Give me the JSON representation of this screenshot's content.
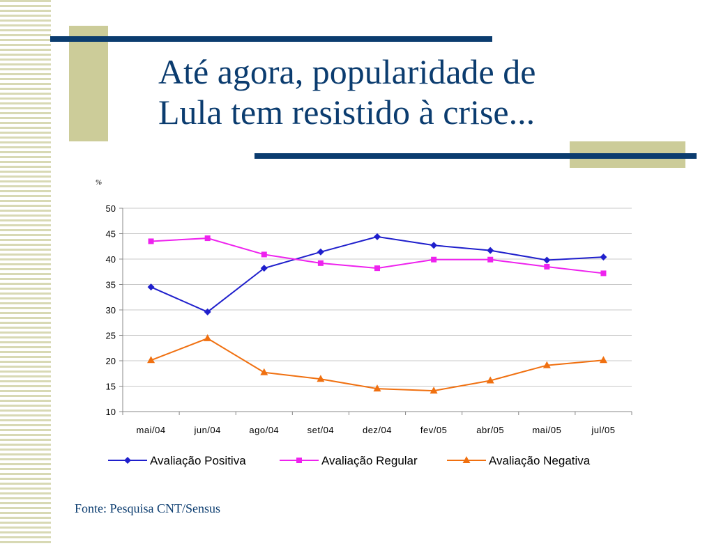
{
  "slide": {
    "title_line1": "Até agora, popularidade de",
    "title_line2": "Lula tem resistido à crise...",
    "source": "Fonte: Pesquisa CNT/Sensus"
  },
  "colors": {
    "title": "#0b3c6f",
    "accent_bar": "#0b3c6f",
    "accent_block": "#cccc99"
  },
  "chart_data": {
    "type": "line",
    "title": "",
    "xlabel": "",
    "ylabel": "%",
    "ylim": [
      10,
      50
    ],
    "yticks": [
      50,
      45,
      40,
      35,
      30,
      25,
      20,
      15,
      10
    ],
    "grid": true,
    "legend_position": "bottom",
    "categories": [
      "mai/04",
      "jun/04",
      "ago/04",
      "set/04",
      "dez/04",
      "fev/05",
      "abr/05",
      "mai/05",
      "jul/05"
    ],
    "series": [
      {
        "name": "Avaliação Positiva",
        "color": "#1f1fcc",
        "marker": "diamond",
        "values": [
          34.5,
          29.6,
          38.2,
          41.4,
          44.4,
          42.7,
          41.7,
          39.8,
          40.4
        ]
      },
      {
        "name": "Avaliação Regular",
        "color": "#ee22ee",
        "marker": "square",
        "values": [
          43.5,
          44.1,
          40.9,
          39.2,
          38.2,
          39.9,
          39.9,
          38.5,
          37.2
        ]
      },
      {
        "name": "Avaliação Negativa",
        "color": "#f07010",
        "marker": "triangle",
        "values": [
          20.1,
          24.4,
          17.7,
          16.4,
          14.5,
          14.1,
          16.1,
          19.1,
          20.1
        ]
      }
    ]
  }
}
